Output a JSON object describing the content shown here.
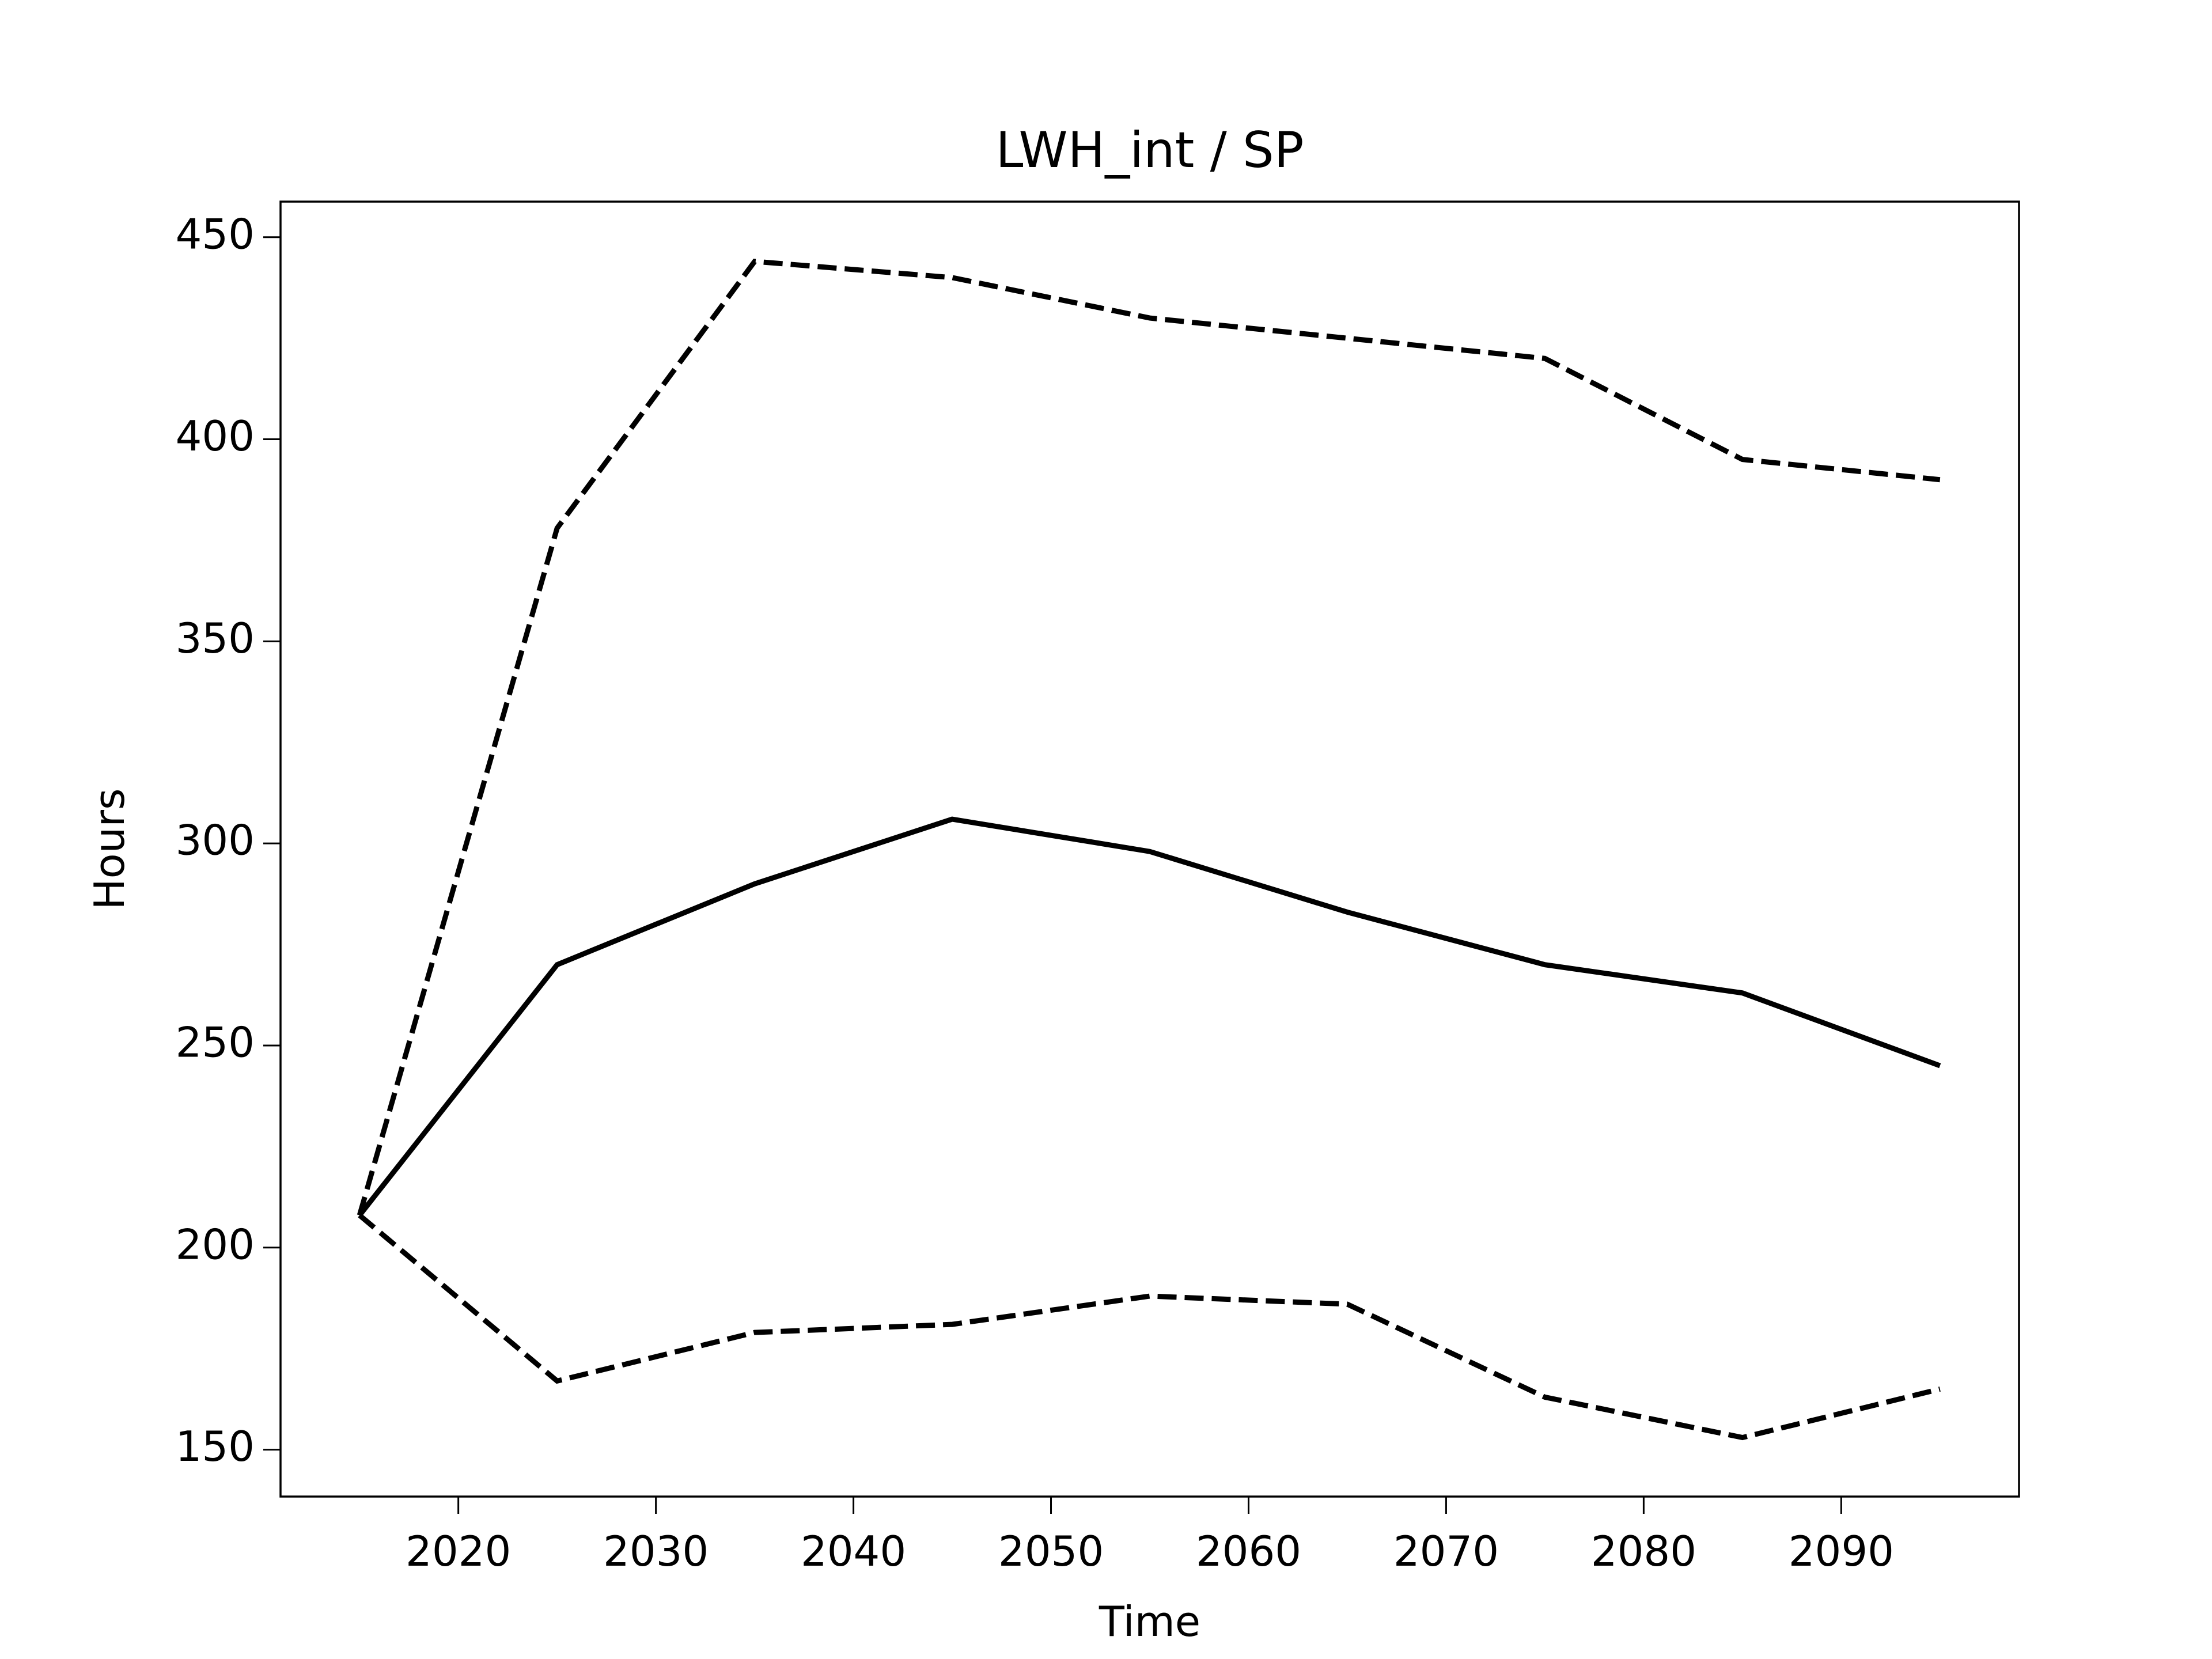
{
  "chart_data": {
    "type": "line",
    "title": "LWH_int / SP",
    "xlabel": "Time",
    "ylabel": "Hours",
    "x": [
      2015,
      2025,
      2035,
      2045,
      2055,
      2065,
      2075,
      2085,
      2095
    ],
    "series": [
      {
        "color": "#000000",
        "linestyle": "solid",
        "values": [
          208,
          270,
          290,
          306,
          298,
          283,
          270,
          263,
          245
        ]
      },
      {
        "color": "#000000",
        "linestyle": "dashed",
        "values": [
          208,
          378,
          444,
          440,
          430,
          425,
          420,
          395,
          390
        ]
      },
      {
        "color": "#000000",
        "linestyle": "dashed",
        "values": [
          208,
          167,
          179,
          181,
          188,
          186,
          163,
          153,
          165
        ]
      }
    ],
    "xlim": [
      2011,
      2099
    ],
    "xticks": [
      2020,
      2030,
      2040,
      2050,
      2060,
      2070,
      2080,
      2090
    ],
    "ylim": [
      138.4,
      458.8
    ],
    "yticks": [
      150,
      200,
      250,
      300,
      350,
      400,
      450
    ],
    "grid": false
  }
}
